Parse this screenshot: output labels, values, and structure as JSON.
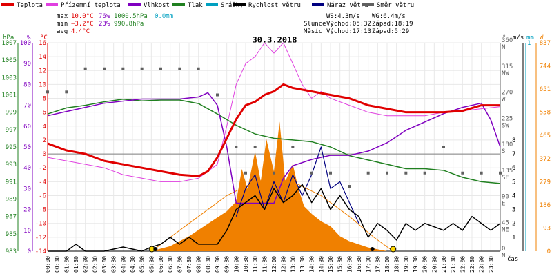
{
  "legend": [
    {
      "label": "Teplota",
      "color": "#e00000"
    },
    {
      "label": "Přízemní teplota",
      "color": "#e040e0"
    },
    {
      "label": "Vlhkost",
      "color": "#8000c0"
    },
    {
      "label": "Tlak",
      "color": "#208020"
    },
    {
      "label": "Srážky",
      "color": "#00a0c0"
    },
    {
      "label": "Rychlost větru",
      "color": "#000000"
    },
    {
      "label": "Náraz větru",
      "color": "#000080"
    },
    {
      "label": "Směr větru",
      "color": "#606060"
    }
  ],
  "stats": {
    "max_label": "max",
    "max_temp": "10.0°C",
    "max_hum": "76%",
    "max_press": "1000.5hPa",
    "max_rain": "0.0mm",
    "min_label": "min",
    "min_temp": "−3.2°C",
    "min_hum": "23%",
    "min_press": "990.8hPa",
    "avg_label": "avg",
    "avg_temp": "4.4°C"
  },
  "wind_info": {
    "ws": "WS:4.3m/s",
    "wg": "WG:6.4m/s"
  },
  "sun": {
    "label": "Slunce",
    "rise": "Východ:05:32",
    "set": "Západ:18:19"
  },
  "moon": {
    "label": "Měsíc",
    "rise": "Východ:17:13",
    "set": "Západ:5:29"
  },
  "date": "30.3.2018",
  "axis_units": {
    "pressure": "hPa",
    "humidity": "%",
    "temperature": "°C",
    "direction": "°",
    "wind": "m/s",
    "rain": "mm",
    "solar": "W",
    "time": "čas"
  },
  "colors": {
    "temperature": "#e00000",
    "ground_temp": "#e040e0",
    "humidity": "#8000c0",
    "pressure": "#208020",
    "rain": "#00a0c0",
    "wind": "#000000",
    "gust": "#000080",
    "direction": "#606060",
    "solar": "#f08000",
    "solar_fill": "#f08000"
  },
  "chart_data": {
    "type": "line",
    "title": "30.3.2018",
    "x_ticks": [
      "00:00",
      "00:30",
      "01:00",
      "01:30",
      "02:00",
      "02:30",
      "03:00",
      "03:30",
      "04:00",
      "04:30",
      "05:00",
      "05:30",
      "06:00",
      "06:30",
      "07:00",
      "07:30",
      "08:00",
      "08:30",
      "09:00",
      "09:30",
      "10:00",
      "10:30",
      "11:00",
      "11:30",
      "12:00",
      "12:30",
      "13:00",
      "13:30",
      "14:00",
      "14:30",
      "15:00",
      "15:30",
      "16:00",
      "16:30",
      "17:00",
      "17:30",
      "18:00",
      "18:30",
      "19:00",
      "19:30",
      "20:00",
      "20:30",
      "21:00",
      "21:30",
      "22:00",
      "22:30",
      "23:00",
      "23:30"
    ],
    "axes": {
      "pressure": {
        "ticks": [
          1007,
          1005,
          1003,
          1001,
          999,
          997,
          995,
          993,
          991,
          989,
          987,
          985,
          983
        ],
        "range": [
          983,
          1007
        ]
      },
      "humidity": {
        "ticks": [
          100,
          90,
          80,
          70,
          60,
          50,
          40,
          30,
          20,
          10,
          0
        ],
        "range": [
          0,
          100
        ]
      },
      "temperature": {
        "ticks": [
          16,
          14,
          12,
          10,
          8,
          6,
          4,
          2,
          0,
          -2,
          -4,
          -6,
          -8,
          -10,
          -12,
          -14
        ],
        "range": [
          -14,
          16
        ]
      },
      "direction": {
        "ticks": [
          {
            "v": 360,
            "l": "N"
          },
          {
            "v": 315,
            "l": "NW"
          },
          {
            "v": 270,
            "l": "W"
          },
          {
            "v": 225,
            "l": "SW"
          },
          {
            "v": 180,
            "l": "S"
          },
          {
            "v": 135,
            "l": "SE"
          },
          {
            "v": 90,
            "l": "E"
          },
          {
            "v": 45,
            "l": "NE"
          },
          {
            "v": 0,
            "l": "N"
          }
        ],
        "range": [
          0,
          360
        ]
      },
      "wind": {
        "ticks": [
          8,
          7,
          6,
          5,
          4,
          3,
          2,
          1
        ],
        "top_tick": 1
      },
      "solar": {
        "ticks": [
          837,
          744,
          651,
          558,
          465,
          372,
          279,
          186,
          93,
          0
        ],
        "range": [
          0,
          837
        ]
      }
    },
    "series": [
      {
        "name": "Teplota",
        "axis": "temperature",
        "points": [
          [
            0,
            1.5
          ],
          [
            1,
            0.5
          ],
          [
            2,
            0
          ],
          [
            3,
            -1
          ],
          [
            4,
            -1.5
          ],
          [
            5,
            -2
          ],
          [
            6,
            -2.5
          ],
          [
            7,
            -3
          ],
          [
            8,
            -3.2
          ],
          [
            8.5,
            -2.5
          ],
          [
            9,
            -0.5
          ],
          [
            10,
            5
          ],
          [
            10.5,
            7
          ],
          [
            11,
            7.5
          ],
          [
            11.5,
            8.5
          ],
          [
            12,
            9
          ],
          [
            12.5,
            10
          ],
          [
            13,
            9.5
          ],
          [
            14,
            9
          ],
          [
            15,
            8.5
          ],
          [
            16,
            8
          ],
          [
            17,
            7
          ],
          [
            18,
            6.5
          ],
          [
            19,
            6
          ],
          [
            20,
            6
          ],
          [
            21,
            6
          ],
          [
            22,
            6.2
          ],
          [
            23,
            7
          ],
          [
            24,
            7
          ]
        ]
      },
      {
        "name": "Přízemní teplota",
        "axis": "temperature",
        "points": [
          [
            0,
            -0.5
          ],
          [
            1,
            -1
          ],
          [
            2,
            -1.5
          ],
          [
            3,
            -2
          ],
          [
            4,
            -3
          ],
          [
            5,
            -3.5
          ],
          [
            6,
            -4
          ],
          [
            7,
            -4
          ],
          [
            8,
            -3.5
          ],
          [
            9,
            -1.5
          ],
          [
            9.5,
            4
          ],
          [
            10,
            10
          ],
          [
            10.5,
            13
          ],
          [
            11,
            14
          ],
          [
            11.5,
            16
          ],
          [
            12,
            14.5
          ],
          [
            12.5,
            16
          ],
          [
            13,
            13
          ],
          [
            13.5,
            10
          ],
          [
            14,
            8
          ],
          [
            14.5,
            9
          ],
          [
            15,
            8
          ],
          [
            16,
            7
          ],
          [
            17,
            6
          ],
          [
            18,
            5.5
          ],
          [
            19,
            5.5
          ],
          [
            20,
            5.5
          ],
          [
            21,
            6
          ],
          [
            22,
            6.2
          ],
          [
            23,
            6.5
          ],
          [
            24,
            6.8
          ]
        ]
      },
      {
        "name": "Vlhkost",
        "axis": "humidity",
        "points": [
          [
            0,
            65
          ],
          [
            1,
            67
          ],
          [
            2,
            69
          ],
          [
            3,
            71
          ],
          [
            4,
            72
          ],
          [
            5,
            73
          ],
          [
            6,
            73
          ],
          [
            7,
            73
          ],
          [
            8,
            74
          ],
          [
            8.5,
            76
          ],
          [
            9,
            70
          ],
          [
            9.5,
            50
          ],
          [
            10,
            23
          ],
          [
            11,
            23
          ],
          [
            12,
            23
          ],
          [
            12.5,
            35
          ],
          [
            13,
            41
          ],
          [
            14,
            44
          ],
          [
            15,
            46
          ],
          [
            16,
            46
          ],
          [
            17,
            48
          ],
          [
            18,
            52
          ],
          [
            19,
            58
          ],
          [
            20,
            62
          ],
          [
            21,
            66
          ],
          [
            22,
            69
          ],
          [
            23,
            71
          ],
          [
            23.5,
            63
          ],
          [
            24,
            50
          ]
        ]
      },
      {
        "name": "Tlak",
        "axis": "pressure",
        "points": [
          [
            0,
            998.8
          ],
          [
            1,
            999.5
          ],
          [
            2,
            999.8
          ],
          [
            3,
            1000.2
          ],
          [
            4,
            1000.5
          ],
          [
            5,
            1000.3
          ],
          [
            6,
            1000.4
          ],
          [
            7,
            1000.4
          ],
          [
            8,
            1000
          ],
          [
            9,
            998.8
          ],
          [
            10,
            997.5
          ],
          [
            11,
            996.5
          ],
          [
            12,
            996
          ],
          [
            13,
            995.8
          ],
          [
            14,
            995.6
          ],
          [
            15,
            995
          ],
          [
            16,
            994
          ],
          [
            17,
            993.5
          ],
          [
            18,
            993
          ],
          [
            19,
            992.5
          ],
          [
            20,
            992.5
          ],
          [
            21,
            992.3
          ],
          [
            22,
            991.5
          ],
          [
            23,
            991
          ],
          [
            24,
            990.8
          ]
        ]
      },
      {
        "name": "Rychlost větru",
        "axis": "wind",
        "points": [
          [
            0,
            0
          ],
          [
            1,
            0
          ],
          [
            1.5,
            0.5
          ],
          [
            2,
            0
          ],
          [
            3,
            0
          ],
          [
            4,
            0.3
          ],
          [
            5,
            0
          ],
          [
            5.5,
            0.3
          ],
          [
            6,
            0.5
          ],
          [
            6.5,
            1
          ],
          [
            7,
            0.5
          ],
          [
            7.5,
            1
          ],
          [
            8,
            0.5
          ],
          [
            8.5,
            0.5
          ],
          [
            9,
            0.5
          ],
          [
            9.5,
            1.5
          ],
          [
            10,
            3
          ],
          [
            10.5,
            3.5
          ],
          [
            11,
            4
          ],
          [
            11.5,
            3
          ],
          [
            12,
            4.5
          ],
          [
            12.5,
            3.5
          ],
          [
            13,
            4
          ],
          [
            13.5,
            4.8
          ],
          [
            14,
            3.5
          ],
          [
            14.5,
            4.5
          ],
          [
            15,
            3
          ],
          [
            15.5,
            4
          ],
          [
            16,
            3
          ],
          [
            16.5,
            2.5
          ],
          [
            17,
            1
          ],
          [
            17.5,
            2
          ],
          [
            18,
            1.5
          ],
          [
            18.5,
            0.8
          ],
          [
            19,
            2
          ],
          [
            19.5,
            1.5
          ],
          [
            20,
            2
          ],
          [
            21,
            1.5
          ],
          [
            21.5,
            2
          ],
          [
            22,
            1.5
          ],
          [
            22.5,
            2.5
          ],
          [
            23,
            2
          ],
          [
            23.5,
            1.5
          ],
          [
            24,
            2
          ]
        ]
      },
      {
        "name": "Náraz větru",
        "axis": "wind",
        "points": [
          [
            10,
            2.5
          ],
          [
            10.5,
            4.5
          ],
          [
            11,
            5.5
          ],
          [
            11.5,
            3
          ],
          [
            12,
            5
          ],
          [
            12.5,
            3.5
          ],
          [
            13,
            5.5
          ],
          [
            13.5,
            4
          ],
          [
            14,
            5.5
          ],
          [
            14.5,
            7.5
          ],
          [
            15,
            4.5
          ],
          [
            15.5,
            5
          ],
          [
            16,
            3.5
          ],
          [
            16.5,
            2
          ]
        ]
      },
      {
        "name": "Směr větru",
        "axis": "direction",
        "points": [
          [
            0,
            275
          ],
          [
            1,
            275
          ],
          [
            2,
            315
          ],
          [
            3,
            315
          ],
          [
            4,
            315
          ],
          [
            5,
            315
          ],
          [
            6,
            315
          ],
          [
            7,
            315
          ],
          [
            8,
            315
          ],
          [
            9,
            270
          ],
          [
            10,
            180
          ],
          [
            10.5,
            135
          ],
          [
            11,
            180
          ],
          [
            12,
            135
          ],
          [
            13,
            180
          ],
          [
            14,
            135
          ],
          [
            15,
            135
          ],
          [
            16,
            112
          ],
          [
            17,
            135
          ],
          [
            18,
            135
          ],
          [
            19,
            135
          ],
          [
            20,
            135
          ],
          [
            21,
            180
          ],
          [
            22,
            135
          ],
          [
            23,
            135
          ],
          [
            24,
            135
          ]
        ]
      },
      {
        "name": "solar",
        "axis": "solar",
        "points": [
          [
            0,
            0
          ],
          [
            5.5,
            0
          ],
          [
            6.5,
            20
          ],
          [
            7.5,
            60
          ],
          [
            8.5,
            110
          ],
          [
            9.5,
            160
          ],
          [
            10,
            200
          ],
          [
            10.3,
            330
          ],
          [
            10.6,
            250
          ],
          [
            11,
            400
          ],
          [
            11.3,
            280
          ],
          [
            11.6,
            450
          ],
          [
            12,
            320
          ],
          [
            12.3,
            520
          ],
          [
            12.6,
            280
          ],
          [
            13,
            350
          ],
          [
            13.3,
            250
          ],
          [
            13.6,
            180
          ],
          [
            14,
            150
          ],
          [
            14.5,
            120
          ],
          [
            15,
            100
          ],
          [
            15.5,
            60
          ],
          [
            16,
            40
          ],
          [
            17,
            15
          ],
          [
            18,
            0
          ],
          [
            24,
            0
          ]
        ]
      },
      {
        "name": "sun_curve",
        "axis": "temperature",
        "points": [
          [
            5.53,
            -14
          ],
          [
            6.5,
            -12
          ],
          [
            8,
            -9
          ],
          [
            9.5,
            -6
          ],
          [
            11,
            -4
          ],
          [
            12,
            -3.5
          ],
          [
            13,
            -4
          ],
          [
            14.5,
            -6
          ],
          [
            16,
            -9
          ],
          [
            17.3,
            -12
          ],
          [
            18.32,
            -14
          ]
        ]
      }
    ]
  }
}
